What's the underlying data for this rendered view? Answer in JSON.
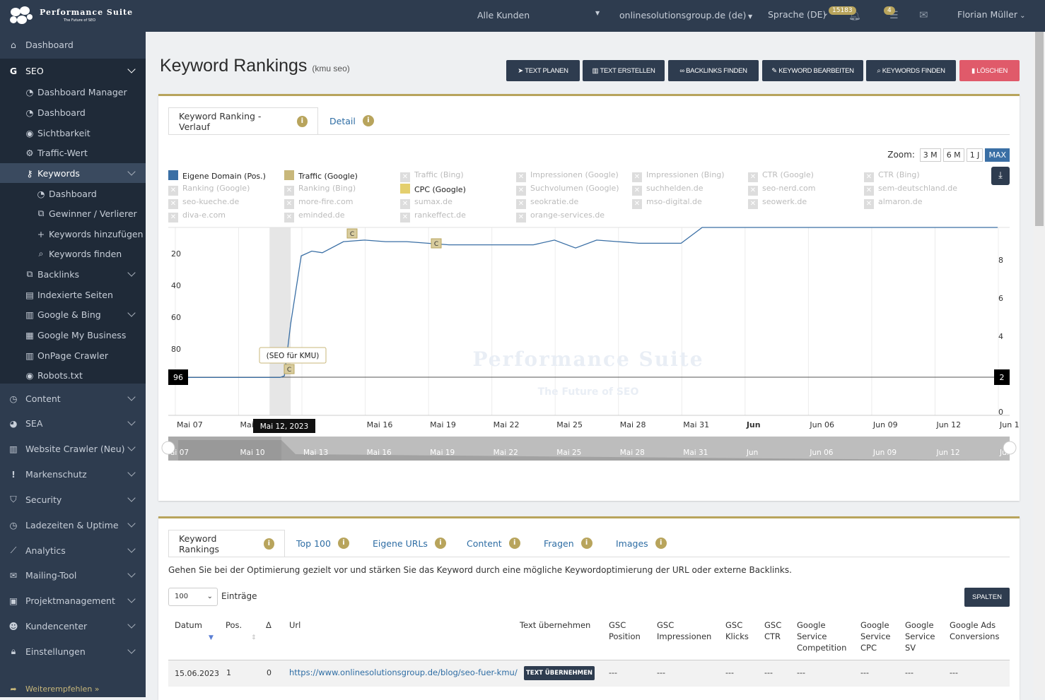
{
  "topbar": {
    "brand": "Performance Suite",
    "tagline": "The Future of SEO",
    "customers": "Alle Kunden",
    "domain": "onlinesolutionsgroup.de (de)",
    "language": "Sprache (DE)",
    "notif_count": "15183",
    "task_count": "4",
    "user": "Florian Müller"
  },
  "sidebar": {
    "items": [
      {
        "label": "Dashboard",
        "icon": "home-icon"
      },
      {
        "label": "SEO",
        "icon": "google-icon"
      },
      {
        "label": "Dashboard Manager",
        "icon": "dashboard-icon"
      },
      {
        "label": "Dashboard",
        "icon": "dashboard-icon"
      },
      {
        "label": "Sichtbarkeit",
        "icon": "eye-icon"
      },
      {
        "label": "Traffic-Wert",
        "icon": "cogs-icon"
      },
      {
        "label": "Keywords",
        "icon": "key-icon"
      },
      {
        "label": "Dashboard",
        "icon": "dashboard-icon"
      },
      {
        "label": "Gewinner / Verlierer",
        "icon": "external-link-icon"
      },
      {
        "label": "Keywords hinzufügen",
        "icon": "plus-icon"
      },
      {
        "label": "Keywords finden",
        "icon": "search-icon"
      },
      {
        "label": "Backlinks",
        "icon": "external-link-icon"
      },
      {
        "label": "Indexierte Seiten",
        "icon": "file-icon"
      },
      {
        "label": "Google & Bing",
        "icon": "chart-area-icon"
      },
      {
        "label": "Google My Business",
        "icon": "store-icon"
      },
      {
        "label": "OnPage Crawler",
        "icon": "chart-area-icon"
      },
      {
        "label": "Robots.txt",
        "icon": "eye-icon"
      },
      {
        "label": "Content",
        "icon": "clock-icon"
      },
      {
        "label": "SEA",
        "icon": "pie-icon"
      },
      {
        "label": "Website Crawler (Neu)",
        "icon": "chart-area-icon"
      },
      {
        "label": "Markenschutz",
        "icon": "exclamation-icon"
      },
      {
        "label": "Security",
        "icon": "shield-icon"
      },
      {
        "label": "Ladezeiten & Uptime",
        "icon": "clock-icon"
      },
      {
        "label": "Analytics",
        "icon": "chart-line-icon"
      },
      {
        "label": "Mailing-Tool",
        "icon": "envelope-icon"
      },
      {
        "label": "Projektmanagement",
        "icon": "briefcase-icon"
      },
      {
        "label": "Kundencenter",
        "icon": "users-icon"
      },
      {
        "label": "Einstellungen",
        "icon": "lock-icon"
      }
    ],
    "recommend": "Weiterempfehlen »"
  },
  "page": {
    "title": "Keyword Rankings",
    "subtitle": "(kmu seo)",
    "buttons": [
      "TEXT PLANEN",
      "TEXT ERSTELLEN",
      "BACKLINKS FINDEN",
      "KEYWORD BEARBEITEN",
      "KEYWORDS FINDEN",
      "LÖSCHEN"
    ]
  },
  "chart_panel": {
    "tabs": [
      "Keyword Ranking - Verlauf",
      "Detail"
    ],
    "zoom_label": "Zoom:",
    "zoom_options": [
      "3 M",
      "6 M",
      "1 J",
      "MAX"
    ],
    "legend": [
      {
        "label": "Eigene Domain (Pos.)",
        "active": true,
        "color": "#3a6fa5"
      },
      {
        "label": "Traffic (Google)",
        "active": true,
        "color": "#c8b77a"
      },
      {
        "label": "Traffic (Bing)",
        "active": false
      },
      {
        "label": "Impressionen (Google)",
        "active": false
      },
      {
        "label": "Impressionen (Bing)",
        "active": false
      },
      {
        "label": "CTR (Google)",
        "active": false
      },
      {
        "label": "CTR (Bing)",
        "active": false
      },
      {
        "label": "Ranking (Google)",
        "active": false
      },
      {
        "label": "Ranking (Bing)",
        "active": false
      },
      {
        "label": "CPC (Google)",
        "active": true,
        "color": "#e4cf6e"
      },
      {
        "label": "Suchvolumen (Google)",
        "active": false
      },
      {
        "label": "suchhelden.de",
        "active": false
      },
      {
        "label": "seo-nerd.com",
        "active": false
      },
      {
        "label": "sem-deutschland.de",
        "active": false
      },
      {
        "label": "seo-kueche.de",
        "active": false
      },
      {
        "label": "more-fire.com",
        "active": false
      },
      {
        "label": "sumax.de",
        "active": false
      },
      {
        "label": "seokratie.de",
        "active": false
      },
      {
        "label": "mso-digital.de",
        "active": false
      },
      {
        "label": "seowerk.de",
        "active": false
      },
      {
        "label": "almaron.de",
        "active": false
      },
      {
        "label": "diva-e.com",
        "active": false
      },
      {
        "label": "eminded.de",
        "active": false
      },
      {
        "label": "rankeffect.de",
        "active": false
      },
      {
        "label": "orange-services.de",
        "active": false
      }
    ],
    "tooltip_date": "Mai 12, 2023",
    "tooltip_note": "(SEO für KMU)",
    "marker_left": "96",
    "marker_right": "2",
    "flag": "C",
    "watermark_title": "Performance Suite",
    "watermark_sub": "The Future of SEO"
  },
  "chart_data": {
    "type": "line",
    "x_ticks": [
      "Mai 07",
      "Mai 1",
      "3",
      "Mai 16",
      "Mai 19",
      "Mai 22",
      "Mai 25",
      "Mai 28",
      "Mai 31",
      "Jun",
      "Jun 06",
      "Jun 09",
      "Jun 12",
      "Jun 1"
    ],
    "navigator_ticks": [
      "ai 07",
      "Mai 10",
      "Mai 13",
      "Mai 16",
      "Mai 19",
      "Mai 22",
      "Mai 25",
      "Mai 28",
      "Mai 31",
      "Jun",
      "Jun 06",
      "Jun 09",
      "Jun 12",
      "Jun"
    ],
    "y_left_ticks": [
      "20",
      "40",
      "60",
      "80"
    ],
    "y_right_ticks": [
      "8",
      "6",
      "4",
      "0"
    ],
    "y_left_reversed": true,
    "y_left_range": [
      1,
      120
    ],
    "y_right_range": [
      0,
      10
    ],
    "series": [
      {
        "name": "Eigene Domain (Pos.)",
        "color": "#3a6fa5",
        "days": [
          0,
          1,
          2,
          3,
          4,
          5,
          5.2,
          5.5,
          6,
          6.5,
          7,
          8,
          9,
          10,
          11,
          12,
          13,
          14,
          15,
          16,
          17,
          18,
          19,
          20,
          21,
          22,
          23,
          24,
          25,
          26,
          27,
          28,
          29,
          30,
          31,
          32,
          33,
          34,
          35,
          36,
          37,
          38,
          39
        ],
        "values": [
          96,
          96,
          96,
          96,
          96,
          96,
          95,
          62,
          19,
          16,
          17,
          10,
          9,
          10,
          10,
          11,
          12,
          12,
          12,
          12,
          12,
          9,
          14,
          9,
          10,
          11,
          11,
          11,
          1,
          1,
          1,
          1,
          1,
          1,
          1,
          1,
          1,
          1,
          1,
          1,
          1,
          1,
          1
        ]
      }
    ]
  },
  "table_panel": {
    "tabs": [
      "Keyword Rankings",
      "Top 100",
      "Eigene URLs",
      "Content",
      "Fragen",
      "Images"
    ],
    "hint": "Gehen Sie bei der Optimierung gezielt vor und stärken Sie das Keyword durch eine mögliche Keywordoptimierung der URL oder externe Backlinks.",
    "page_size": "100",
    "entries_label": "Einträge",
    "columns_button": "SPALTEN",
    "columns": [
      "Datum",
      "Pos.",
      "Δ",
      "Url",
      "Text übernehmen",
      "GSC Position",
      "GSC Impressionen",
      "GSC Klicks",
      "GSC CTR",
      "Google Service Competition",
      "Google Service CPC",
      "Google Service SV",
      "Google Ads Conversions"
    ],
    "rows": [
      {
        "date": "15.06.2023",
        "pos": "1",
        "delta": "0",
        "url": "https://www.onlinesolutionsgroup.de/blog/seo-fuer-kmu/",
        "action": "TEXT ÜBERNEHMEN",
        "gsc_pos": "---",
        "gsc_imp": "---",
        "gsc_clicks": "---",
        "gsc_ctr": "---",
        "competition": "---",
        "cpc": "---",
        "sv": "---",
        "conversions": "---"
      }
    ]
  }
}
